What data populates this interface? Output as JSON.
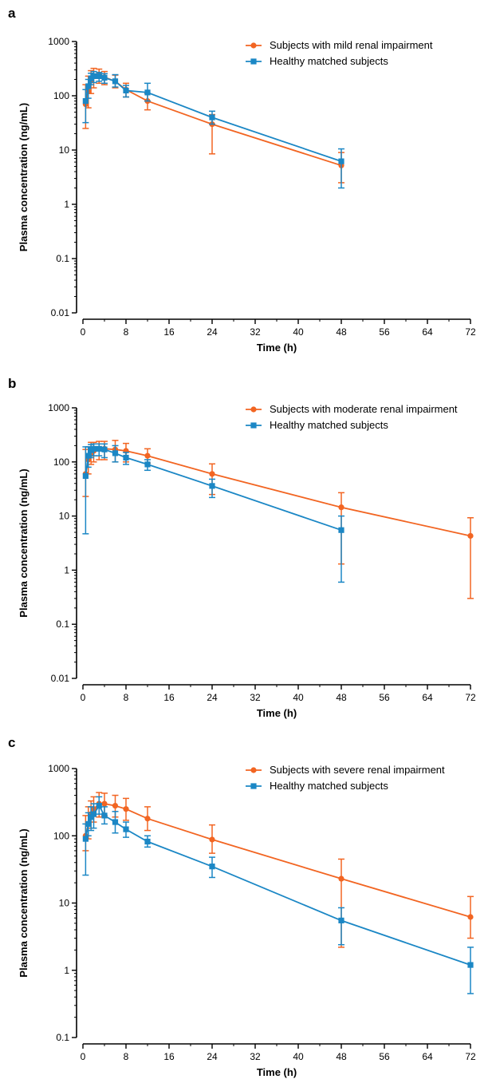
{
  "colors": {
    "impaired": "#f26522",
    "healthy": "#1b87c5",
    "axis": "#000000"
  },
  "chart_data": [
    {
      "panel_label": "a",
      "type": "line",
      "xlabel": "Time (h)",
      "ylabel": "Plasma concentration (ng/mL)",
      "xlim": [
        0,
        72
      ],
      "xticks": [
        "0",
        "8",
        "16",
        "24",
        "32",
        "40",
        "48",
        "56",
        "64",
        "72"
      ],
      "yscale": "log",
      "ylim": [
        0.01,
        1000
      ],
      "yticks": [
        "0.01",
        "0.1",
        "1",
        "10",
        "100",
        "1000"
      ],
      "legend_position": "top-right",
      "series": [
        {
          "name": "Subjects with mild renal impairment",
          "marker": "circle",
          "x": [
            0.5,
            1,
            1.5,
            2,
            3,
            4,
            6,
            8,
            12,
            24,
            48
          ],
          "y": [
            70,
            120,
            190,
            230,
            245,
            220,
            185,
            130,
            80,
            30,
            5.2
          ],
          "err_low": [
            25,
            60,
            110,
            140,
            170,
            160,
            140,
            95,
            55,
            8.5,
            2.5
          ],
          "err_high": [
            160,
            230,
            290,
            320,
            310,
            280,
            240,
            170,
            110,
            45,
            9
          ]
        },
        {
          "name": "Healthy matched subjects",
          "marker": "square",
          "x": [
            0.5,
            1,
            1.5,
            2,
            3,
            4,
            6,
            8,
            12,
            24,
            48
          ],
          "y": [
            80,
            150,
            210,
            230,
            230,
            215,
            185,
            125,
            115,
            40,
            6.2
          ],
          "err_low": [
            32,
            90,
            160,
            175,
            185,
            170,
            145,
            95,
            80,
            30,
            2
          ],
          "err_high": [
            130,
            200,
            260,
            280,
            270,
            255,
            245,
            155,
            170,
            52,
            10.5
          ]
        }
      ]
    },
    {
      "panel_label": "b",
      "type": "line",
      "xlabel": "Time (h)",
      "ylabel": "Plasma concentration (ng/mL)",
      "xlim": [
        0,
        72
      ],
      "xticks": [
        "0",
        "8",
        "16",
        "24",
        "32",
        "40",
        "48",
        "56",
        "64",
        "72"
      ],
      "yscale": "log",
      "ylim": [
        0.01,
        1000
      ],
      "yticks": [
        "0.01",
        "0.1",
        "1",
        "10",
        "100",
        "1000"
      ],
      "legend_position": "top-right",
      "series": [
        {
          "name": "Subjects with moderate renal impairment",
          "marker": "circle",
          "x": [
            0.5,
            1,
            1.5,
            2,
            3,
            4,
            6,
            8,
            12,
            24,
            48,
            72
          ],
          "y": [
            60,
            110,
            140,
            160,
            175,
            175,
            170,
            160,
            130,
            60,
            14.5,
            4.3
          ],
          "err_low": [
            23,
            60,
            90,
            100,
            110,
            110,
            100,
            100,
            95,
            25,
            1.3,
            0.3
          ],
          "err_high": [
            170,
            190,
            230,
            230,
            240,
            240,
            250,
            220,
            175,
            92,
            27,
            9.3
          ]
        },
        {
          "name": "Healthy matched subjects",
          "marker": "square",
          "x": [
            0.5,
            1,
            1.5,
            2,
            3,
            4,
            6,
            8,
            12,
            24,
            48
          ],
          "y": [
            55,
            130,
            165,
            175,
            175,
            170,
            145,
            120,
            90,
            36,
            5.5
          ],
          "err_low": [
            4.7,
            80,
            120,
            130,
            130,
            120,
            100,
            90,
            70,
            22,
            0.6
          ],
          "err_high": [
            190,
            190,
            210,
            215,
            215,
            215,
            200,
            150,
            110,
            48,
            10
          ]
        }
      ]
    },
    {
      "panel_label": "c",
      "type": "line",
      "xlabel": "Time (h)",
      "ylabel": "Plasma concentration (ng/mL)",
      "xlim": [
        0,
        72
      ],
      "xticks": [
        "0",
        "8",
        "16",
        "24",
        "32",
        "40",
        "48",
        "56",
        "64",
        "72"
      ],
      "yscale": "log",
      "ylim": [
        0.1,
        1000
      ],
      "yticks": [
        "0.1",
        "1",
        "10",
        "100",
        "1000"
      ],
      "legend_position": "top-right",
      "series": [
        {
          "name": "Subjects with severe renal impairment",
          "marker": "circle",
          "x": [
            0.5,
            1,
            1.5,
            2,
            3,
            4,
            6,
            8,
            12,
            24,
            48,
            72
          ],
          "y": [
            100,
            150,
            210,
            250,
            300,
            300,
            280,
            250,
            180,
            88,
            23,
            6.2
          ],
          "err_low": [
            60,
            90,
            130,
            160,
            190,
            200,
            190,
            170,
            120,
            55,
            2.2,
            3
          ],
          "err_high": [
            200,
            270,
            330,
            380,
            440,
            430,
            400,
            360,
            270,
            145,
            45,
            12.5
          ]
        },
        {
          "name": "Healthy matched subjects",
          "marker": "square",
          "x": [
            0.5,
            1,
            1.5,
            2,
            3,
            4,
            6,
            8,
            12,
            24,
            48,
            72
          ],
          "y": [
            90,
            150,
            190,
            210,
            280,
            200,
            160,
            125,
            82,
            35,
            5.5,
            1.2
          ],
          "err_low": [
            26,
            100,
            120,
            130,
            210,
            150,
            110,
            95,
            68,
            24,
            2.4,
            0.45
          ],
          "err_high": [
            150,
            220,
            270,
            300,
            380,
            270,
            230,
            160,
            100,
            48,
            8.5,
            2.2
          ]
        }
      ]
    }
  ]
}
